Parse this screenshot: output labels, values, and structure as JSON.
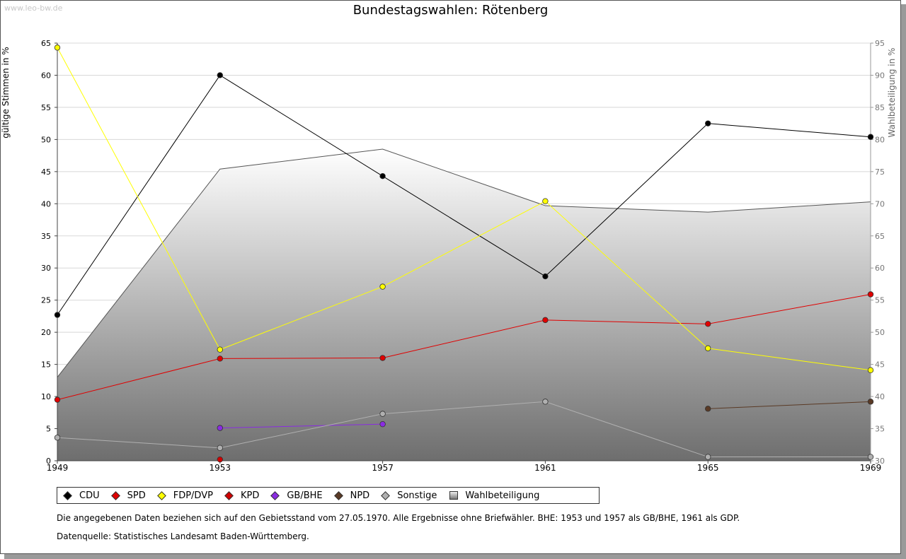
{
  "watermark": "www.leo-bw.de",
  "title": "Bundestagswahlen: Rötenberg",
  "left_axis_label": "gültige Stimmen in %",
  "right_axis_label": "Wahlbeteiligung in %",
  "legend": [
    {
      "label": "CDU",
      "color": "#000000"
    },
    {
      "label": "SPD",
      "color": "#e00000"
    },
    {
      "label": "FDP/DVP",
      "color": "#ffff00"
    },
    {
      "label": "KPD",
      "color": "#d00000"
    },
    {
      "label": "GB/BHE",
      "color": "#8a2be2"
    },
    {
      "label": "NPD",
      "color": "#5a3a25"
    },
    {
      "label": "Sonstige",
      "color": "#b0b0b0"
    },
    {
      "label": "Wahlbeteiligung",
      "color": "#888888"
    }
  ],
  "notes": {
    "line1": "Die angegebenen Daten beziehen sich auf den Gebietsstand vom 27.05.1970. Alle Ergebnisse ohne Briefwähler. BHE: 1953 und 1957 als GB/BHE, 1961 als GDP.",
    "line2": "Datenquelle: Statistisches Landesamt Baden-Württemberg."
  },
  "chart_data": {
    "type": "line",
    "title": "Bundestagswahlen: Rötenberg",
    "x": [
      1949,
      1953,
      1957,
      1961,
      1965,
      1969
    ],
    "y_left": {
      "label": "gültige Stimmen in %",
      "ylim": [
        0,
        65
      ],
      "ticks": [
        0,
        5,
        10,
        15,
        20,
        25,
        30,
        35,
        40,
        45,
        50,
        55,
        60,
        65
      ]
    },
    "y_right": {
      "label": "Wahlbeteiligung in %",
      "ylim": [
        30,
        95
      ],
      "ticks": [
        30,
        35,
        40,
        45,
        50,
        55,
        60,
        65,
        70,
        75,
        80,
        85,
        90,
        95
      ]
    },
    "series": [
      {
        "name": "CDU",
        "color": "#000000",
        "values": [
          22.7,
          60.0,
          44.3,
          28.7,
          52.5,
          50.4
        ]
      },
      {
        "name": "SPD",
        "color": "#e00000",
        "values": [
          9.5,
          15.9,
          16.0,
          21.9,
          21.3,
          25.9
        ]
      },
      {
        "name": "FDP/DVP",
        "color": "#ffff00",
        "values": [
          64.3,
          17.3,
          27.1,
          40.4,
          17.5,
          14.1
        ]
      },
      {
        "name": "KPD",
        "color": "#d00000",
        "values": [
          null,
          0.2,
          null,
          null,
          null,
          null
        ]
      },
      {
        "name": "GB/BHE",
        "color": "#8a2be2",
        "values": [
          null,
          5.1,
          5.7,
          null,
          null,
          null
        ]
      },
      {
        "name": "NPD",
        "color": "#5a3a25",
        "values": [
          null,
          null,
          null,
          null,
          8.1,
          9.2
        ]
      },
      {
        "name": "Sonstige",
        "color": "#b0b0b0",
        "values": [
          3.6,
          2.0,
          7.3,
          9.2,
          0.6,
          0.6
        ]
      }
    ],
    "area": {
      "name": "Wahlbeteiligung",
      "axis": "right",
      "values": [
        43.0,
        75.4,
        78.5,
        69.7,
        68.7,
        70.3
      ]
    }
  }
}
